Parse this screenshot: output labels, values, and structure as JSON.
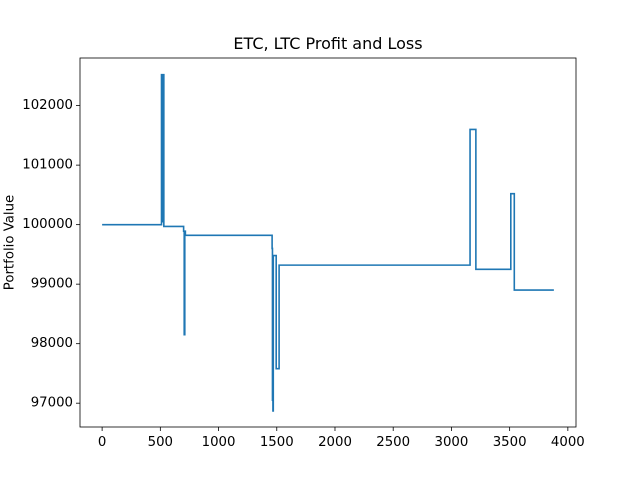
{
  "chart_data": {
    "type": "line",
    "title": "ETC, LTC Profit and Loss",
    "xlabel": "",
    "ylabel": "Portfolio Value",
    "xlim": [
      -190,
      4070
    ],
    "ylim": [
      96600,
      102800
    ],
    "xticks": [
      0,
      500,
      1000,
      1500,
      2000,
      2500,
      3000,
      3500,
      4000
    ],
    "yticks": [
      97000,
      98000,
      99000,
      100000,
      101000,
      102000
    ],
    "grid": false,
    "legend": "none",
    "series": [
      {
        "color": "#1f77b4",
        "step": true,
        "x": [
          0,
          510,
          510,
          515,
          515,
          520,
          520,
          530,
          530,
          700,
          700,
          705,
          705,
          710,
          710,
          715,
          715,
          1460,
          1460,
          1463,
          1463,
          1467,
          1467,
          1470,
          1470,
          1475,
          1475,
          1495,
          1495,
          1505,
          1505,
          1520,
          1520,
          3160,
          3160,
          3175,
          3175,
          3200,
          3200,
          3210,
          3210,
          3510,
          3510,
          3520,
          3520,
          3540,
          3540,
          3880
        ],
        "y": [
          100000,
          100000,
          102520,
          102520,
          100050,
          100050,
          102520,
          102520,
          99970,
          99970,
          99890,
          99890,
          98150,
          98150,
          99890,
          99890,
          99820,
          99820,
          99600,
          99600,
          97050,
          97050,
          96870,
          96870,
          99480,
          99480,
          99480,
          99480,
          97580,
          97580,
          97580,
          97580,
          99320,
          99320,
          101600,
          101600,
          101600,
          101600,
          101600,
          101600,
          99250,
          99250,
          100520,
          100520,
          100520,
          100520,
          98900,
          98900
        ]
      }
    ]
  }
}
